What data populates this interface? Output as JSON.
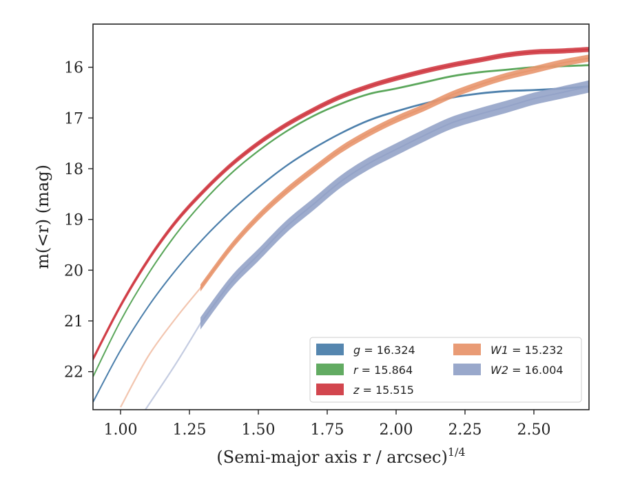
{
  "chart_data": {
    "type": "line",
    "title": "",
    "xlabel": "(Semi-major axis r / arcsec)",
    "xlabel_superscript": "1/4",
    "ylabel": "m(<r) (mag)",
    "xlim": [
      0.9,
      2.7
    ],
    "ylim": [
      22.75,
      15.15
    ],
    "y_inverted": true,
    "grid": false,
    "legend_placement": "lower-right",
    "xticks": [
      "1.00",
      "1.25",
      "1.50",
      "1.75",
      "2.00",
      "2.25",
      "2.50"
    ],
    "xtick_values": [
      1.0,
      1.25,
      1.5,
      1.75,
      2.0,
      2.25,
      2.5
    ],
    "yticks": [
      "16",
      "17",
      "18",
      "19",
      "20",
      "21",
      "22"
    ],
    "ytick_values": [
      16,
      17,
      18,
      19,
      20,
      21,
      22
    ],
    "series": [
      {
        "name": "g = 16.324",
        "legend_var": "g",
        "legend_value": "16.324",
        "color": "#4c7fab",
        "band_halfwidth": 0.02,
        "x": [
          0.9,
          1.0,
          1.1,
          1.2,
          1.3,
          1.4,
          1.5,
          1.6,
          1.7,
          1.8,
          1.9,
          2.0,
          2.1,
          2.2,
          2.3,
          2.4,
          2.5,
          2.6,
          2.7
        ],
        "y": [
          22.6,
          21.58,
          20.72,
          20.0,
          19.38,
          18.84,
          18.37,
          17.95,
          17.6,
          17.3,
          17.05,
          16.87,
          16.72,
          16.6,
          16.52,
          16.47,
          16.45,
          16.42,
          16.38
        ]
      },
      {
        "name": "r = 15.864",
        "legend_var": "r",
        "legend_value": "15.864",
        "color": "#5aa65a",
        "band_halfwidth": 0.02,
        "x": [
          0.9,
          1.0,
          1.1,
          1.2,
          1.3,
          1.4,
          1.5,
          1.6,
          1.7,
          1.8,
          1.9,
          2.0,
          2.1,
          2.2,
          2.3,
          2.4,
          2.5,
          2.6,
          2.7
        ],
        "y": [
          22.1,
          21.0,
          20.08,
          19.3,
          18.65,
          18.1,
          17.65,
          17.27,
          16.96,
          16.72,
          16.53,
          16.42,
          16.3,
          16.18,
          16.1,
          16.05,
          16.0,
          15.98,
          15.96
        ]
      },
      {
        "name": "z = 15.515",
        "legend_var": "z",
        "legend_value": "15.515",
        "color": "#d03c45",
        "band_halfwidth": 0.05,
        "x": [
          0.9,
          1.0,
          1.1,
          1.2,
          1.3,
          1.4,
          1.5,
          1.6,
          1.7,
          1.8,
          1.9,
          2.0,
          2.1,
          2.2,
          2.3,
          2.4,
          2.5,
          2.6,
          2.7
        ],
        "y": [
          21.75,
          20.7,
          19.8,
          19.05,
          18.45,
          17.93,
          17.5,
          17.14,
          16.84,
          16.58,
          16.38,
          16.22,
          16.08,
          15.96,
          15.86,
          15.76,
          15.7,
          15.68,
          15.65
        ]
      },
      {
        "name": "W1 = 15.232",
        "legend_var": "W1",
        "legend_value": "15.232",
        "color": "#e8966e",
        "band_halfwidth": 0.07,
        "faint_x": [
          1.0,
          1.1,
          1.2,
          1.29
        ],
        "faint_y": [
          22.7,
          21.7,
          20.95,
          20.35
        ],
        "x": [
          1.29,
          1.4,
          1.5,
          1.6,
          1.7,
          1.8,
          1.9,
          2.0,
          2.1,
          2.2,
          2.3,
          2.4,
          2.5,
          2.6,
          2.7
        ],
        "y": [
          20.35,
          19.55,
          18.95,
          18.45,
          18.02,
          17.62,
          17.3,
          17.03,
          16.8,
          16.55,
          16.35,
          16.18,
          16.05,
          15.92,
          15.82
        ]
      },
      {
        "name": "W2 = 16.004",
        "legend_var": "W2",
        "legend_value": "16.004",
        "color": "#94a3c8",
        "band_halfwidth": 0.12,
        "faint_x": [
          1.09,
          1.2,
          1.29
        ],
        "faint_y": [
          22.75,
          21.85,
          21.05
        ],
        "x": [
          1.29,
          1.4,
          1.5,
          1.6,
          1.7,
          1.8,
          1.9,
          2.0,
          2.1,
          2.2,
          2.3,
          2.4,
          2.5,
          2.6,
          2.7
        ],
        "y": [
          21.05,
          20.25,
          19.7,
          19.15,
          18.7,
          18.25,
          17.9,
          17.62,
          17.35,
          17.1,
          16.93,
          16.78,
          16.62,
          16.5,
          16.38
        ]
      }
    ]
  }
}
